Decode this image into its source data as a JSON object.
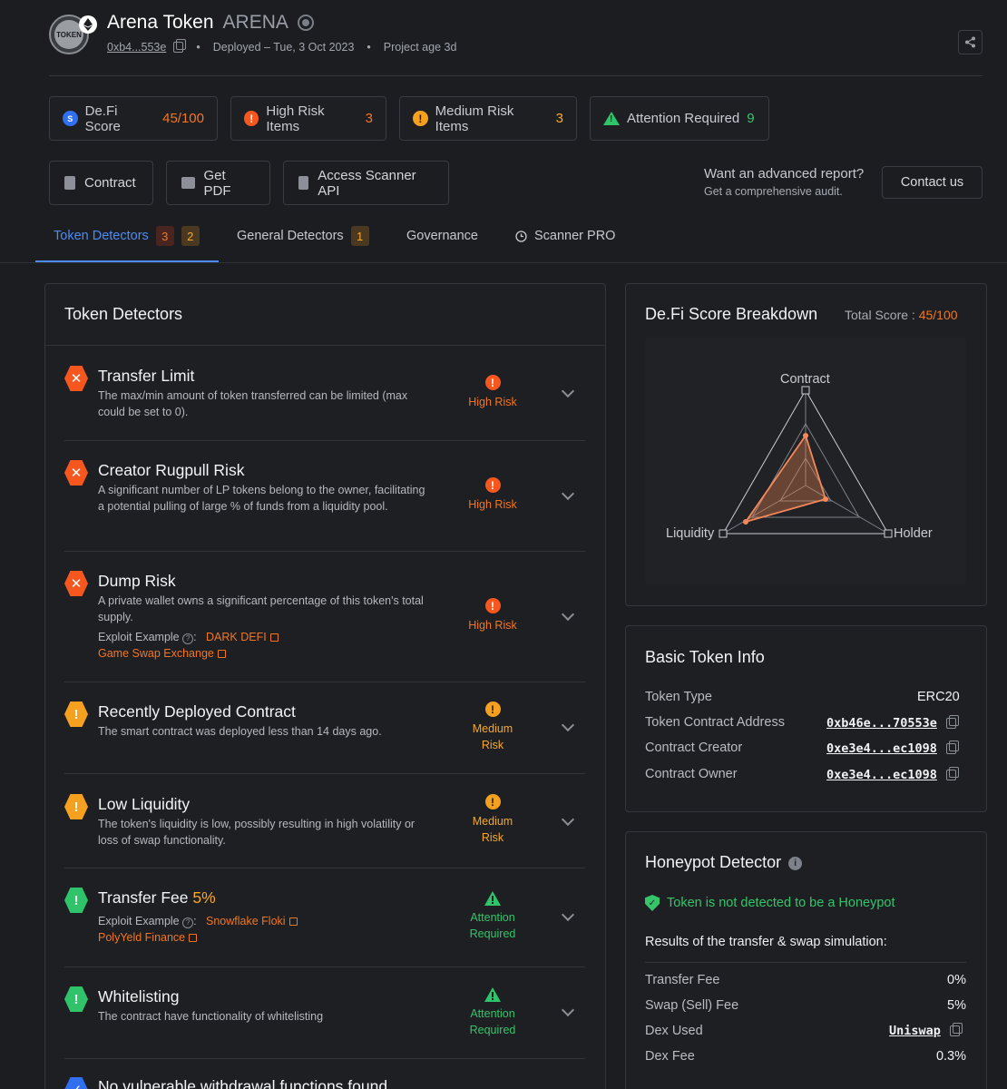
{
  "token": {
    "name": "Arena Token",
    "symbol": "ARENA",
    "logo_text": "TOKEN",
    "address_short": "0xb4...553e",
    "deployed": "Deployed – Tue, 3 Oct 2023",
    "project_age": "Project age 3d"
  },
  "summary": {
    "score_label": "De.Fi Score",
    "score_value": "45/100",
    "high_label": "High Risk Items",
    "high_value": "3",
    "medium_label": "Medium Risk Items",
    "medium_value": "3",
    "attention_label": "Attention Required",
    "attention_value": "9"
  },
  "actions": {
    "contract": "Contract",
    "pdf": "Get PDF",
    "api": "Access Scanner API",
    "adv_title": "Want an advanced report?",
    "adv_sub": "Get a comprehensive audit.",
    "contact": "Contact us"
  },
  "tabs": [
    {
      "label": "Token Detectors",
      "badge_high": "3",
      "badge_med": "2"
    },
    {
      "label": "General Detectors",
      "badge_med": "1"
    },
    {
      "label": "Governance"
    },
    {
      "label": "Scanner PRO"
    }
  ],
  "detectors": {
    "heading": "Token Detectors",
    "exploit_label": "Exploit Example",
    "items": [
      {
        "title": "Transfer Limit",
        "desc": "The max/min amount of token transferred can be limited (max could be set to 0).",
        "risk": "High Risk"
      },
      {
        "title": "Creator Rugpull Risk",
        "desc": "A significant number of LP tokens belong to the owner, facilitating a potential pulling of large % of funds from a liquidity pool.",
        "risk": "High Risk"
      },
      {
        "title": "Dump Risk",
        "desc": "A private wallet owns a significant percentage of this token's total supply.",
        "risk": "High Risk",
        "exploits": [
          "DARK DEFI",
          "Game Swap Exchange"
        ]
      },
      {
        "title": "Recently Deployed Contract",
        "desc": "The smart contract was deployed less than 14 days ago.",
        "risk_l1": "Medium",
        "risk_l2": "Risk"
      },
      {
        "title": "Low Liquidity",
        "desc": "The token's liquidity is low, possibly resulting in high volatility or loss of swap functionality.",
        "risk_l1": "Medium",
        "risk_l2": "Risk"
      },
      {
        "title": "Transfer Fee",
        "title_pct": "5%",
        "risk_l1": "Attention",
        "risk_l2": "Required",
        "exploits": [
          "Snowflake Floki",
          "PolyYeld Finance"
        ]
      },
      {
        "title": "Whitelisting",
        "desc": "The contract have functionality of whitelisting",
        "risk_l1": "Attention",
        "risk_l2": "Required"
      },
      {
        "title": "No vulnerable withdrawal functions found"
      }
    ]
  },
  "score_breakdown": {
    "heading": "De.Fi Score Breakdown",
    "total_label": "Total Score :",
    "total_value": "45/100",
    "axes": [
      "Contract",
      "Holder",
      "Liquidity"
    ]
  },
  "basic_info": {
    "heading": "Basic Token Info",
    "rows": [
      {
        "key": "Token Type",
        "value": "ERC20"
      },
      {
        "key": "Token Contract Address",
        "value": "0xb46e...70553e"
      },
      {
        "key": "Contract Creator",
        "value": "0xe3e4...ec1098"
      },
      {
        "key": "Contract Owner",
        "value": "0xe3e4...ec1098"
      }
    ]
  },
  "honeypot": {
    "heading": "Honeypot Detector",
    "status": "Token is not detected to be a Honeypot",
    "sim_title": "Results of the transfer & swap simulation:",
    "rows": [
      {
        "key": "Transfer Fee",
        "value": "0%"
      },
      {
        "key": "Swap (Sell) Fee",
        "value": "5%"
      },
      {
        "key": "Dex Used",
        "value": "Uniswap"
      },
      {
        "key": "Dex Fee",
        "value": "0.3%"
      }
    ]
  },
  "colors": {
    "accent": "#4c8bf5",
    "high": "#f27623",
    "medium": "#f6a829",
    "attention": "#35c46a"
  }
}
